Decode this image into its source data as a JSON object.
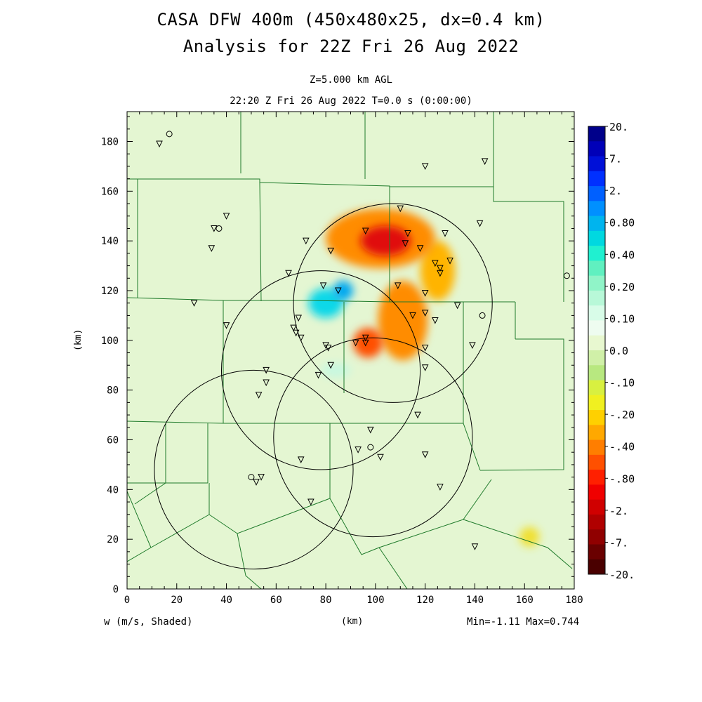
{
  "titles": {
    "line1": "CASA DFW 400m (450x480x25, dx=0.4 km)",
    "line2": "Analysis for 22Z Fri 26 Aug 2022",
    "level": "Z=5.000 km AGL",
    "time": "22:20 Z Fri 26 Aug 2022   T=0.0 s (0:00:00)"
  },
  "footer": {
    "variable": "w (m/s, Shaded)",
    "min_max": "Min=-1.11 Max=0.744"
  },
  "chart_data": {
    "type": "heatmap",
    "variable": "w (m/s, Shaded)",
    "xlabel": "(km)",
    "ylabel": "(km)",
    "xlim": [
      0,
      180
    ],
    "ylim": [
      0,
      192
    ],
    "xticks": [
      0,
      20,
      40,
      60,
      80,
      100,
      120,
      140,
      160,
      180
    ],
    "yticks": [
      0,
      20,
      40,
      60,
      80,
      100,
      120,
      140,
      160,
      180
    ],
    "min": -1.11,
    "max": 0.744,
    "colorbar": {
      "labels": [
        "20.",
        "7.",
        "2.",
        "0.80",
        "0.40",
        "0.20",
        "0.10",
        "0.0",
        "-.10",
        "-.20",
        "-.40",
        "-.80",
        "-2.",
        "-7.",
        "-20."
      ],
      "colors": [
        "#00008a",
        "#0000b8",
        "#0010d8",
        "#0030ff",
        "#0060ff",
        "#0090ff",
        "#00b4ee",
        "#00d8e0",
        "#20f0d0",
        "#60f0c0",
        "#90f4c8",
        "#b8f8d8",
        "#d8fce8",
        "#eefcf0",
        "#e8f8d0",
        "#d0f0a8",
        "#b8e880",
        "#d8f040",
        "#f0f020",
        "#ffd000",
        "#ffa800",
        "#ff7e00",
        "#ff5000",
        "#ff2000",
        "#f00000",
        "#d00000",
        "#b00000",
        "#900000",
        "#6a0000",
        "#4a0000"
      ]
    },
    "radar_range_rings": [
      {
        "center": [
          107,
          115
        ],
        "radius_km": 40
      },
      {
        "center": [
          78,
          88
        ],
        "radius_km": 40
      },
      {
        "center": [
          99,
          61
        ],
        "radius_km": 40
      },
      {
        "center": [
          51,
          48
        ],
        "radius_km": 40
      }
    ],
    "updraft_regions": [
      {
        "center": [
          80,
          115
        ],
        "radii": [
          7,
          6
        ],
        "value": 0.4
      },
      {
        "center": [
          87,
          120
        ],
        "radii": [
          4,
          4
        ],
        "value": 0.6
      },
      {
        "center": [
          84,
          88
        ],
        "radii": [
          6,
          3
        ],
        "value": 0.1
      }
    ],
    "downdraft_regions": [
      {
        "center": [
          102,
          141
        ],
        "radii": [
          22,
          12
        ],
        "value": -0.4
      },
      {
        "center": [
          104,
          140
        ],
        "radii": [
          10,
          6
        ],
        "value": -0.9
      },
      {
        "center": [
          111,
          108
        ],
        "radii": [
          10,
          16
        ],
        "value": -0.4
      },
      {
        "center": [
          97,
          99
        ],
        "radii": [
          6,
          6
        ],
        "value": -0.6
      },
      {
        "center": [
          125,
          128
        ],
        "radii": [
          7,
          12
        ],
        "value": -0.3
      },
      {
        "center": [
          162,
          21
        ],
        "radii": [
          4,
          4
        ],
        "value": -0.2
      }
    ],
    "station_triangles": [
      [
        13,
        179
      ],
      [
        120,
        170
      ],
      [
        144,
        172
      ],
      [
        110,
        153
      ],
      [
        40,
        150
      ],
      [
        113,
        143
      ],
      [
        96,
        144
      ],
      [
        35,
        145
      ],
      [
        112,
        139
      ],
      [
        118,
        137
      ],
      [
        128,
        143
      ],
      [
        130,
        132
      ],
      [
        34,
        137
      ],
      [
        82,
        136
      ],
      [
        72,
        140
      ],
      [
        65,
        127
      ],
      [
        124,
        131
      ],
      [
        126,
        129
      ],
      [
        126,
        127
      ],
      [
        109,
        122
      ],
      [
        120,
        119
      ],
      [
        79,
        122
      ],
      [
        85,
        120
      ],
      [
        27,
        115
      ],
      [
        142,
        147
      ],
      [
        133,
        114
      ],
      [
        40,
        106
      ],
      [
        67,
        105
      ],
      [
        68,
        103
      ],
      [
        70,
        101
      ],
      [
        69,
        109
      ],
      [
        80,
        98
      ],
      [
        81,
        97
      ],
      [
        92,
        99
      ],
      [
        96,
        99
      ],
      [
        96,
        101
      ],
      [
        115,
        110
      ],
      [
        120,
        111
      ],
      [
        124,
        108
      ],
      [
        139,
        98
      ],
      [
        120,
        97
      ],
      [
        120,
        89
      ],
      [
        56,
        88
      ],
      [
        56,
        83
      ],
      [
        53,
        78
      ],
      [
        77,
        86
      ],
      [
        82,
        90
      ],
      [
        98,
        64
      ],
      [
        93,
        56
      ],
      [
        117,
        70
      ],
      [
        120,
        54
      ],
      [
        102,
        53
      ],
      [
        70,
        52
      ],
      [
        52,
        43
      ],
      [
        54,
        45
      ],
      [
        74,
        35
      ],
      [
        126,
        41
      ],
      [
        140,
        17
      ]
    ],
    "station_circles": [
      [
        17,
        183
      ],
      [
        37,
        145
      ],
      [
        177,
        126
      ],
      [
        143,
        110
      ],
      [
        98,
        57
      ],
      [
        50,
        45
      ]
    ]
  }
}
